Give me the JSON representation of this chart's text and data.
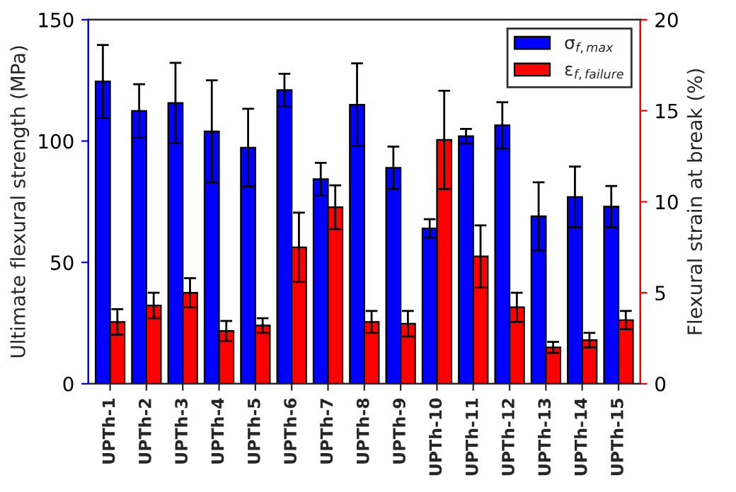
{
  "chart_data": {
    "type": "bar",
    "xlabel": null,
    "ylabel": "Ultimate flexural strength (MPa)",
    "y2label": "Flexural strain at break (%)",
    "categories": [
      "UPTh-1",
      "UPTh-2",
      "UPTh-3",
      "UPTh-4",
      "UPTh-5",
      "UPTh-6",
      "UPTh-7",
      "UPTh-8",
      "UPTh-9",
      "UPTh-10",
      "UPTh-11",
      "UPTh-12",
      "UPTh-13",
      "UPTh-14",
      "UPTh-15"
    ],
    "series": [
      {
        "name": "σ$_{f,max}$",
        "color": "#0000ff",
        "values": [
          124.6,
          112.4,
          115.7,
          104,
          97.3,
          121,
          84.3,
          115,
          89,
          64,
          102,
          106.5,
          69,
          77,
          73
        ],
        "errors": [
          15,
          11,
          16.5,
          21,
          16,
          6.7,
          6.7,
          17,
          8.7,
          3.8,
          3,
          9.5,
          14,
          12.5,
          8.5
        ]
      },
      {
        "name": "ε$_{f,failure}$",
        "color": "#ff0000",
        "axis": "y2",
        "values": [
          3.4,
          4.3,
          5.0,
          2.9,
          3.2,
          7.5,
          9.7,
          3.4,
          3.3,
          13.4,
          7.0,
          4.2,
          2.0,
          2.4,
          3.5
        ],
        "errors": [
          0.7,
          0.7,
          0.8,
          0.55,
          0.4,
          1.9,
          1.2,
          0.6,
          0.7,
          2.7,
          1.7,
          0.8,
          0.3,
          0.4,
          0.5
        ]
      }
    ],
    "ylim": [
      0,
      150
    ],
    "yticks": [
      0,
      50,
      100,
      150
    ],
    "y2lim": [
      0,
      20
    ],
    "y2ticks": [
      0,
      5,
      10,
      15,
      20
    ],
    "legend": "top right",
    "grid": false
  }
}
